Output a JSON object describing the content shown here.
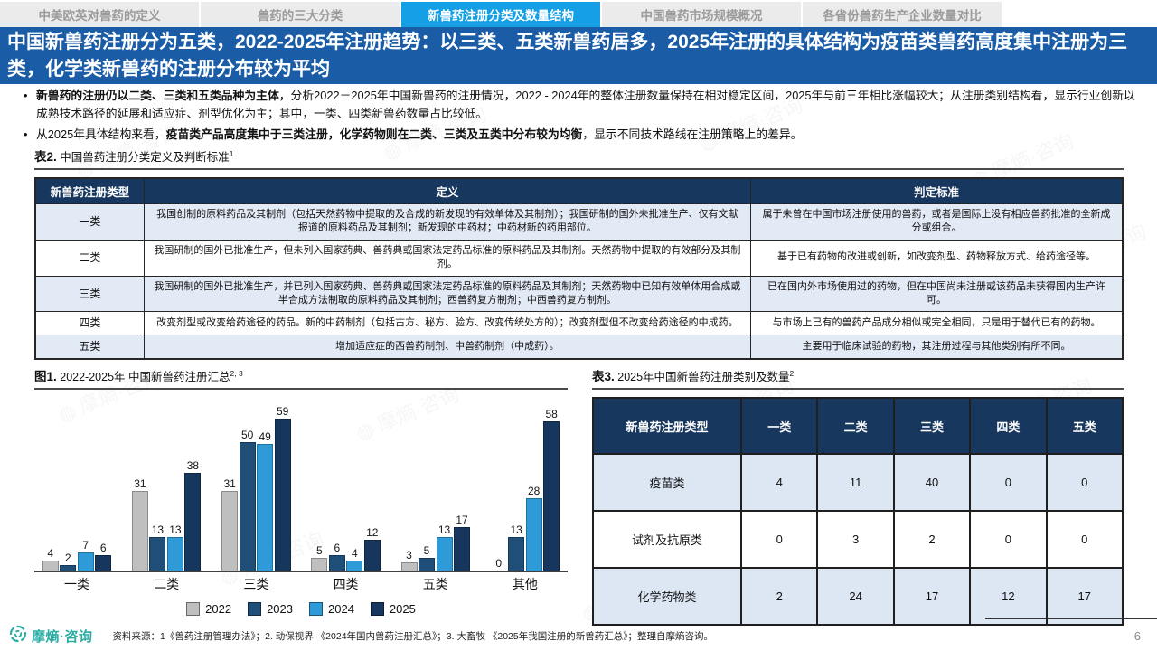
{
  "tabs": [
    {
      "label": "中美欧英对兽药的定义",
      "active": false
    },
    {
      "label": "兽药的三大分类",
      "active": false
    },
    {
      "label": "新兽药注册分类及数量结构",
      "active": true
    },
    {
      "label": "中国兽药市场规模概况",
      "active": false
    },
    {
      "label": "各省份兽药生产企业数量对比",
      "active": false
    }
  ],
  "header": {
    "title": "中国新兽药注册分为五类，2022-2025年注册趋势：以三类、五类新兽药居多，2025年注册的具体结构为疫苗类兽药高度集中注册为三类，化学类新兽药的注册分布较为平均"
  },
  "bullets": [
    {
      "segments": [
        {
          "text": "新兽药的注册仍以二类、三类和五类品种为主体",
          "bold": true
        },
        {
          "text": "，分析2022－2025年中国新兽药的注册情况，2022 - 2024年的整体注册数量保持在相对稳定区间，2025年与前三年相比涨幅较大；从注册类别结构看，显示行业创新以成熟技术路径的延展和适应症、剂型优化为主；其中，一类、四类新兽药数量占比较低。",
          "bold": false
        }
      ]
    },
    {
      "segments": [
        {
          "text": "从2025年具体结构来看，",
          "bold": false
        },
        {
          "text": "疫苗类产品高度集中于三类注册，化学药物则在二类、三类及五类中分布较为均衡",
          "bold": true
        },
        {
          "text": "，显示不同技术路线在注册策略上的差异。",
          "bold": false
        }
      ]
    }
  ],
  "table2": {
    "caption_prefix": "表2.",
    "caption": " 中国兽药注册分类定义及判断标准",
    "caption_sup": "1",
    "headers": [
      "新兽药注册类型",
      "定义",
      "判定标准"
    ],
    "rows": [
      {
        "type": "一类",
        "definition": "我国创制的原料药品及其制剂（包括天然药物中提取的及合成的新发现的有效单体及其制剂）；我国研制的国外未批准生产、仅有文献报道的原料药品及其制剂；新发现的中药材；中药材新的药用部位。",
        "criteria": "属于未曾在中国市场注册使用的兽药，或者是国际上没有相应兽药批准的全新成分或组合。"
      },
      {
        "type": "二类",
        "definition": "我国研制的国外已批准生产，但未列入国家药典、兽药典或国家法定药品标准的原料药品及其制剂。天然药物中提取的有效部分及其制剂。",
        "criteria": "基于已有药物的改进或创新，如改变剂型、药物释放方式、给药途径等。"
      },
      {
        "type": "三类",
        "definition": "我国研制的国外已批准生产，并已列入国家药典、兽药典或国家法定药品标准的原料药品及其制剂；天然药物中已知有效单体用合成或半合成方法制取的原料药品及其制剂；西兽药复方制剂；中西兽药复方制剂。",
        "criteria": "已在国内外市场使用过的药物，但在中国尚未注册或该药品未获得国内生产许可。"
      },
      {
        "type": "四类",
        "definition": "改变剂型或改变给药途径的药品。新的中药制剂（包括古方、秘方、验方、改变传统处方的）；改变剂型但不改变给药途径的中成药。",
        "criteria": "与市场上已有的兽药产品成分相似或完全相同，只是用于替代已有的药物。"
      },
      {
        "type": "五类",
        "definition": "增加适应症的西兽药制剂、中兽药制剂（中成药）。",
        "criteria": "主要用于临床试验的药物，其注册过程与其他类别有所不同。"
      }
    ]
  },
  "figure1": {
    "caption_prefix": "图1.",
    "caption": " 2022-2025年 中国新兽药注册汇总",
    "caption_sup": "2, 3"
  },
  "chart_data": {
    "type": "bar",
    "title": "2022-2025年 中国新兽药注册汇总",
    "categories": [
      "一类",
      "二类",
      "三类",
      "四类",
      "五类",
      "其他"
    ],
    "series": [
      {
        "name": "2022",
        "color": "#bfbfbf",
        "values": [
          4,
          31,
          31,
          5,
          3,
          0
        ]
      },
      {
        "name": "2023",
        "color": "#1f4e79",
        "values": [
          2,
          13,
          50,
          6,
          5,
          13
        ]
      },
      {
        "name": "2024",
        "color": "#2e9bd8",
        "values": [
          7,
          13,
          49,
          4,
          13,
          28
        ]
      },
      {
        "name": "2025",
        "color": "#16365d",
        "values": [
          6,
          38,
          59,
          12,
          17,
          58
        ]
      }
    ],
    "xlabel": "",
    "ylabel": "",
    "ylim": [
      0,
      62
    ],
    "grid": false,
    "legend_position": "bottom",
    "value_labels": true
  },
  "table3": {
    "caption_prefix": "表3.",
    "caption": " 2025年中国新兽药注册类别及数量",
    "caption_sup": "2",
    "headers": [
      "新兽药注册类型",
      "一类",
      "二类",
      "三类",
      "四类",
      "五类"
    ],
    "rows": [
      {
        "label": "疫苗类",
        "values": [
          4,
          11,
          40,
          0,
          0
        ]
      },
      {
        "label": "试剂及抗原类",
        "values": [
          0,
          3,
          2,
          0,
          0
        ]
      },
      {
        "label": "化学药物类",
        "values": [
          2,
          24,
          17,
          12,
          17
        ]
      }
    ]
  },
  "footer": {
    "logo_text": "摩熵·咨询",
    "source": "资料来源：1《兽药注册管理办法》；2. 动保视界 《2024年国内兽药注册汇总》；3. 大畜牧 《2025年我国注册的新兽药汇总》；整理自摩熵咨询。",
    "page_number": "6"
  },
  "watermark": {
    "text": "摩熵·咨询"
  },
  "colors": {
    "active_tab": "#15a0e6",
    "headline_bg": "#1a5ca6",
    "table_header_navy": "#17375e",
    "row_alt_blue": "#e2eaf5",
    "logo_teal": "#2bada4"
  }
}
